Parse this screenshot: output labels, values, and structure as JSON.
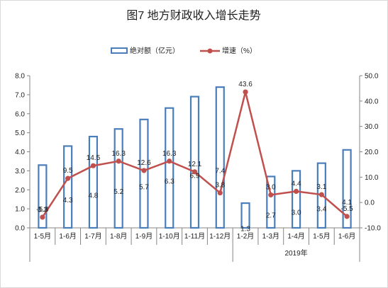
{
  "chart_data": {
    "type": "bar",
    "title": "图7  地方财政收入增长走势",
    "categories": [
      "1-5月",
      "1-6月",
      "1-7月",
      "1-8月",
      "1-9月",
      "1-10月",
      "1-11月",
      "1-12月",
      "1-2月",
      "1-3月",
      "1-4月",
      "1-5月",
      "1-6月"
    ],
    "group_label": "2019年",
    "series": [
      {
        "name": "绝对额（亿元）",
        "type": "bar",
        "axis": "left",
        "values": [
          3.3,
          4.3,
          4.8,
          5.2,
          5.7,
          6.3,
          6.9,
          7.4,
          1.3,
          2.7,
          3.0,
          3.4,
          4.1
        ],
        "labels": [
          "3.3",
          "4.3",
          "4.8",
          "5.2",
          "5.7",
          "6.3",
          "6.9",
          "7.4",
          "1.3",
          "2.7",
          "3.0",
          "3.4",
          "4.1"
        ]
      },
      {
        "name": "增速（%）",
        "type": "line",
        "axis": "right",
        "values": [
          -5.8,
          9.5,
          14.5,
          16.3,
          12.6,
          16.3,
          12.1,
          3.8,
          43.6,
          3.0,
          4.4,
          3.1,
          -5.5
        ],
        "labels": [
          "-5.8",
          "9.5",
          "14.5",
          "16.3",
          "12.6",
          "16.3",
          "12.1",
          "3.8",
          "43.6",
          "3.0",
          "4.4",
          "3.1",
          "-5.5"
        ]
      }
    ],
    "y_left": {
      "min": 0,
      "max": 8,
      "step": 1,
      "tick_labels": [
        "0.0",
        "1.0",
        "2.0",
        "3.0",
        "4.0",
        "5.0",
        "6.0",
        "7.0",
        "8.0"
      ]
    },
    "y_right": {
      "min": -10,
      "max": 50,
      "step": 10,
      "tick_labels": [
        "-10.0",
        "0.0",
        "10.0",
        "20.0",
        "30.0",
        "40.0",
        "50.0"
      ]
    },
    "legend_position": "top",
    "grid": false,
    "colors": {
      "bar_stroke": "#4a7ebb",
      "line": "#c0504d",
      "axis": "#868686"
    }
  }
}
